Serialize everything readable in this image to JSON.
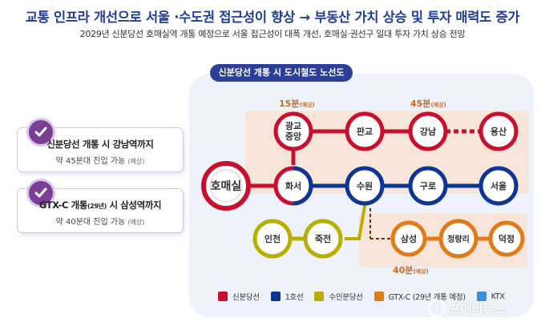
{
  "header": {
    "title": "교통 인프라 개선으로 서울 ·수도권 접근성이 향상 → 부동산 가치 상승 및 투자 매력도 증가",
    "subtitle": "2029년 신분당선 호매실역 개통 예정으로 서울 접근성이 대폭 개선, 호매실·권선구 일대 투자 가치 상승 전망"
  },
  "map": {
    "title": "신분당선 개통 시 도시철도 노선도",
    "time_labels": [
      {
        "id": "t15",
        "value": "15분",
        "note": "(예상)"
      },
      {
        "id": "t45",
        "value": "45분",
        "note": "(예상)"
      },
      {
        "id": "t40",
        "value": "40분",
        "note": "(예상)"
      }
    ],
    "stations": {
      "homaesil": "호매실",
      "gwanggyo": [
        "광교",
        "중앙"
      ],
      "pangyo": "판교",
      "gangnam": "강남",
      "yongsan": "용산",
      "hwaseo": "화서",
      "suwon": "수원",
      "guro": "구로",
      "seoul": "서울",
      "incheon": "인천",
      "jukjeon": "죽전",
      "samseong": "삼성",
      "cheongnyangni": "청량리",
      "deokjeong": "덕정"
    }
  },
  "cards": [
    {
      "line1": "신분당선 개통 시 강남역까지",
      "line2": "약 45분대 진입 가능",
      "note": "(예상)"
    },
    {
      "line1_a": "GTX-C 개통",
      "line1_small": "(29년)",
      "line1_b": " 시 삼성역까지",
      "line2": "약 40분대 진입 가능",
      "note": "(예상)"
    }
  ],
  "legend": [
    {
      "label": "신분당선",
      "color": "#c8102e"
    },
    {
      "label": "1호선",
      "color": "#0d3692"
    },
    {
      "label": "수인분당선",
      "color": "#b8b000"
    },
    {
      "label": "GTX-C (29년 개통 예정)",
      "color": "#e07b1a"
    },
    {
      "label": "KTX",
      "color": "#3a8fd6"
    }
  ],
  "watermark": "포에버뉴스",
  "colors": {
    "sinbundang": "#c8102e",
    "line1": "#0d3692",
    "suin": "#b8b000",
    "gtxc": "#e07b1a",
    "ktx": "#3a8fd6",
    "title": "#1f3d99",
    "check": "#7a3e96",
    "time_label": "#d2691e"
  }
}
